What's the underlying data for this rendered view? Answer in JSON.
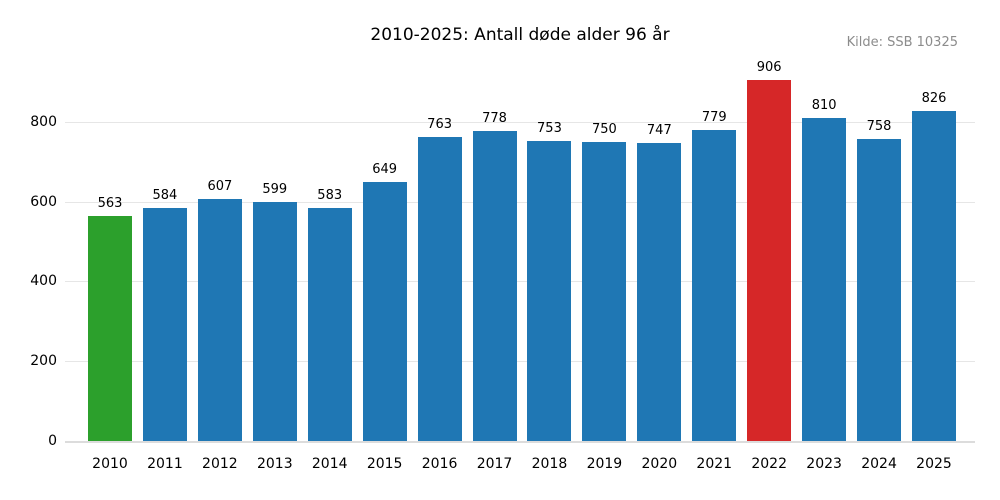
{
  "chart_data": {
    "type": "bar",
    "title": "2010-2025: Antall døde alder 96 år",
    "source_note": "Kilde: SSB 10325",
    "categories": [
      "2010",
      "2011",
      "2012",
      "2013",
      "2014",
      "2015",
      "2016",
      "2017",
      "2018",
      "2019",
      "2020",
      "2021",
      "2022",
      "2023",
      "2024",
      "2025"
    ],
    "values": [
      563,
      584,
      607,
      599,
      583,
      649,
      763,
      778,
      753,
      750,
      747,
      779,
      906,
      810,
      758,
      826
    ],
    "bar_colors": [
      "#2ca02c",
      "#1f77b4",
      "#1f77b4",
      "#1f77b4",
      "#1f77b4",
      "#1f77b4",
      "#1f77b4",
      "#1f77b4",
      "#1f77b4",
      "#1f77b4",
      "#1f77b4",
      "#1f77b4",
      "#d62728",
      "#1f77b4",
      "#1f77b4",
      "#1f77b4"
    ],
    "xlabel": "",
    "ylabel": "",
    "ylim": [
      0,
      950
    ],
    "yticks": [
      0,
      200,
      400,
      600,
      800
    ],
    "grid": true,
    "legend": false,
    "value_labels_shown": true,
    "colors": {
      "grid": "#e6e6e6",
      "axis_line": "#dcdcdc",
      "text": "#000000",
      "source_text": "#8c8c8c"
    }
  }
}
